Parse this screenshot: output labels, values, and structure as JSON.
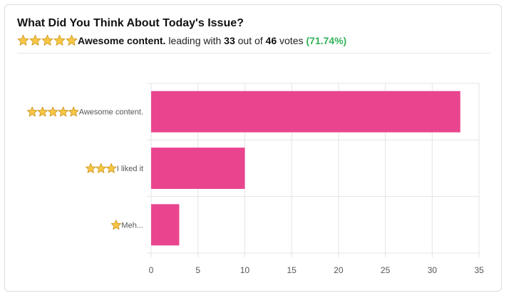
{
  "header": {
    "title": "What Did You Think About Today's Issue?",
    "summary": {
      "leader_stars": 5,
      "leader_label": "Awesome content.",
      "leading_text": "leading with",
      "leader_votes": "33",
      "out_of_text": "out of",
      "total_votes": "46",
      "votes_text": "votes",
      "percent": "(71.74%)"
    }
  },
  "colors": {
    "bar": "#e9458f",
    "percent": "#34b35a",
    "grid": "#e4e4e4",
    "star": "#f6c744"
  },
  "chart_data": {
    "type": "bar",
    "orientation": "horizontal",
    "categories": [
      "Awesome content.",
      "I liked it",
      "Meh..."
    ],
    "category_stars": [
      5,
      3,
      1
    ],
    "values": [
      33,
      10,
      3
    ],
    "xlim": [
      0,
      35
    ],
    "xticks": [
      "0",
      "5",
      "10",
      "15",
      "20",
      "25",
      "30",
      "35"
    ],
    "grid": true,
    "legend": false
  }
}
